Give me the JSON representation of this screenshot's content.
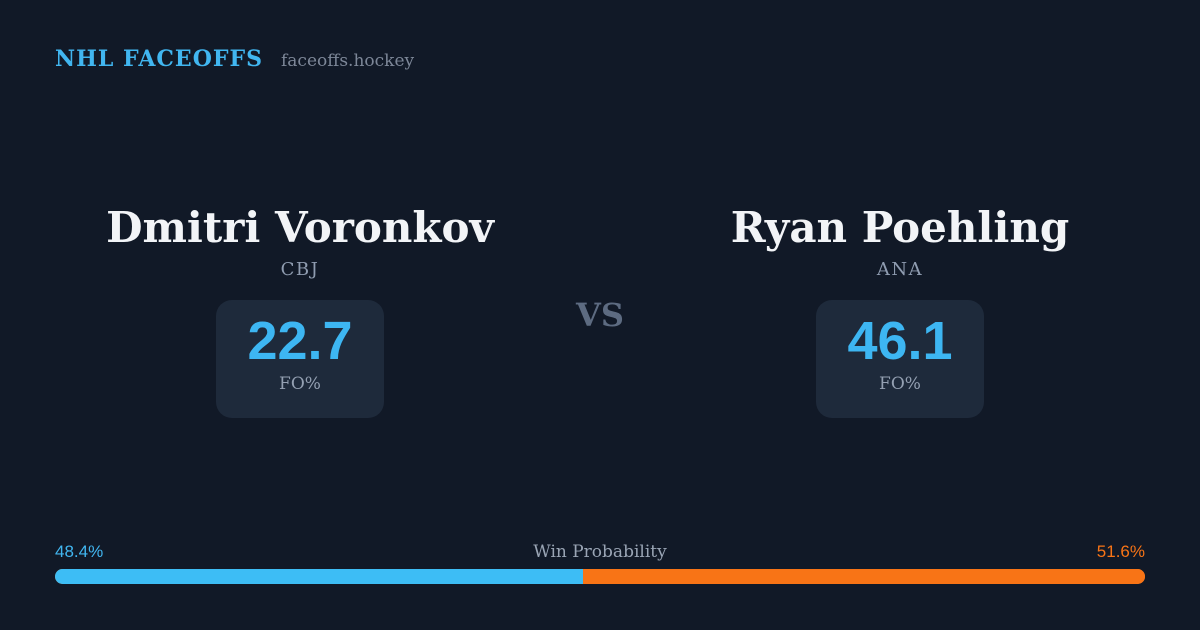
{
  "header": {
    "brand": "NHL FACEOFFS",
    "site": "faceoffs.hockey"
  },
  "matchup": {
    "vs_label": "VS",
    "players": [
      {
        "name": "Dmitri Voronkov",
        "team": "CBJ",
        "stat_value": "22.7",
        "stat_label": "FO%"
      },
      {
        "name": "Ryan Poehling",
        "team": "ANA",
        "stat_value": "46.1",
        "stat_label": "FO%"
      }
    ]
  },
  "win_probability": {
    "label": "Win Probability",
    "left_pct_text": "48.4%",
    "right_pct_text": "51.6%",
    "left_value": 48.4,
    "right_value": 51.6
  },
  "colors": {
    "background": "#111927",
    "card": "#1e2a3b",
    "accent_blue_text": "#3db6f2",
    "brand_blue": "#41b6f0",
    "bar_blue": "#3dbdf5",
    "bar_orange": "#f87416",
    "name_white": "#f2f4f7",
    "muted_gray": "#94a0b2",
    "vs_gray": "#5d6b81",
    "site_gray": "#7d8798"
  }
}
